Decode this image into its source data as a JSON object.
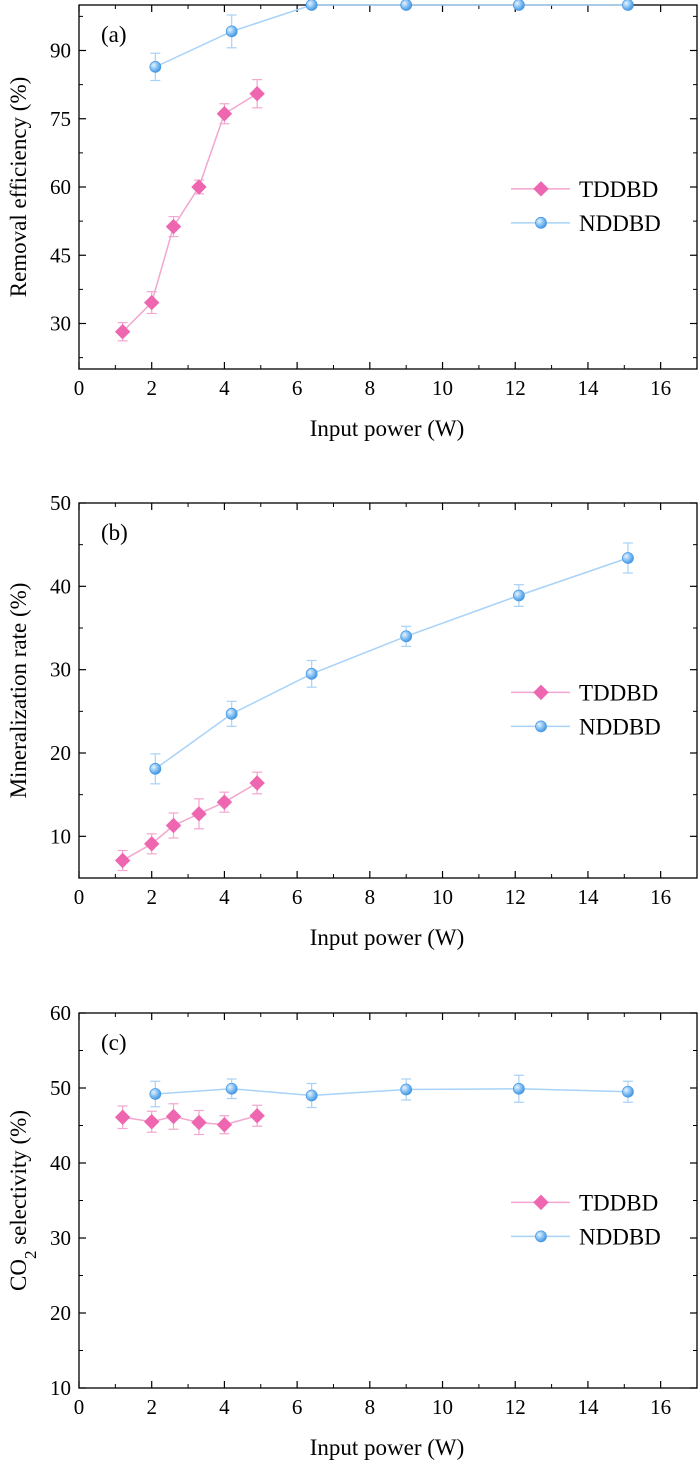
{
  "colors": {
    "TDDBD": "#ee66b0",
    "NDDBD": "#5aaaf0",
    "TDDBD_line": "#f3a6cf",
    "NDDBD_line": "#a8d2f7"
  },
  "chart_data": [
    {
      "type": "line",
      "panel_label": "(a)",
      "xlabel": "Input power (W)",
      "ylabel": "Removal efficiency (%)",
      "xlim": [
        0,
        17
      ],
      "ylim": [
        20,
        100
      ],
      "xticks": [
        0,
        2,
        4,
        6,
        8,
        10,
        12,
        14,
        16
      ],
      "yticks": [
        30,
        45,
        60,
        75,
        90
      ],
      "legend_placement": "right-middle",
      "series": [
        {
          "name": "TDDBD",
          "marker": "diamond",
          "x": [
            1.2,
            2.0,
            2.6,
            3.3,
            4.0,
            4.9
          ],
          "y": [
            28.2,
            34.6,
            51.3,
            60.0,
            76.1,
            80.5
          ],
          "err": [
            2.0,
            2.4,
            2.2,
            1.5,
            2.2,
            3.1
          ]
        },
        {
          "name": "NDDBD",
          "marker": "circle",
          "x": [
            2.1,
            4.2,
            6.4,
            9.0,
            12.1,
            15.1
          ],
          "y": [
            86.4,
            94.2,
            100.0,
            100.0,
            100.0,
            100.0
          ],
          "err": [
            3.0,
            3.6,
            0,
            0,
            0,
            0
          ]
        }
      ]
    },
    {
      "type": "line",
      "panel_label": "(b)",
      "xlabel": "Input power (W)",
      "ylabel": "Mineralization rate (%)",
      "xlim": [
        0,
        17
      ],
      "ylim": [
        5,
        50
      ],
      "xticks": [
        0,
        2,
        4,
        6,
        8,
        10,
        12,
        14,
        16
      ],
      "yticks": [
        10,
        20,
        30,
        40,
        50
      ],
      "legend_placement": "right-middle",
      "series": [
        {
          "name": "TDDBD",
          "marker": "diamond",
          "x": [
            1.2,
            2.0,
            2.6,
            3.3,
            4.0,
            4.9
          ],
          "y": [
            7.1,
            9.1,
            11.3,
            12.7,
            14.1,
            16.4
          ],
          "err": [
            1.2,
            1.2,
            1.5,
            1.8,
            1.2,
            1.3
          ]
        },
        {
          "name": "NDDBD",
          "marker": "circle",
          "x": [
            2.1,
            4.2,
            6.4,
            9.0,
            12.1,
            15.1
          ],
          "y": [
            18.1,
            24.7,
            29.5,
            34.0,
            38.9,
            43.4
          ],
          "err": [
            1.8,
            1.5,
            1.6,
            1.2,
            1.3,
            1.8
          ]
        }
      ]
    },
    {
      "type": "line",
      "panel_label": "(c)",
      "xlabel": "Input power (W)",
      "ylabel_prefix": "CO",
      "ylabel_subscript": "2",
      "ylabel_suffix": " selectivity (%)",
      "xlim": [
        0,
        17
      ],
      "ylim": [
        10,
        60
      ],
      "xticks": [
        0,
        2,
        4,
        6,
        8,
        10,
        12,
        14,
        16
      ],
      "yticks": [
        10,
        20,
        30,
        40,
        50,
        60
      ],
      "legend_placement": "right-middle",
      "series": [
        {
          "name": "TDDBD",
          "marker": "diamond",
          "x": [
            1.2,
            2.0,
            2.6,
            3.3,
            4.0,
            4.9
          ],
          "y": [
            46.1,
            45.5,
            46.2,
            45.4,
            45.1,
            46.3
          ],
          "err": [
            1.5,
            1.4,
            1.7,
            1.6,
            1.2,
            1.4
          ]
        },
        {
          "name": "NDDBD",
          "marker": "circle",
          "x": [
            2.1,
            4.2,
            6.4,
            9.0,
            12.1,
            15.1
          ],
          "y": [
            49.2,
            49.9,
            49.0,
            49.8,
            49.9,
            49.5
          ],
          "err": [
            1.7,
            1.3,
            1.6,
            1.4,
            1.8,
            1.4
          ]
        }
      ]
    }
  ]
}
